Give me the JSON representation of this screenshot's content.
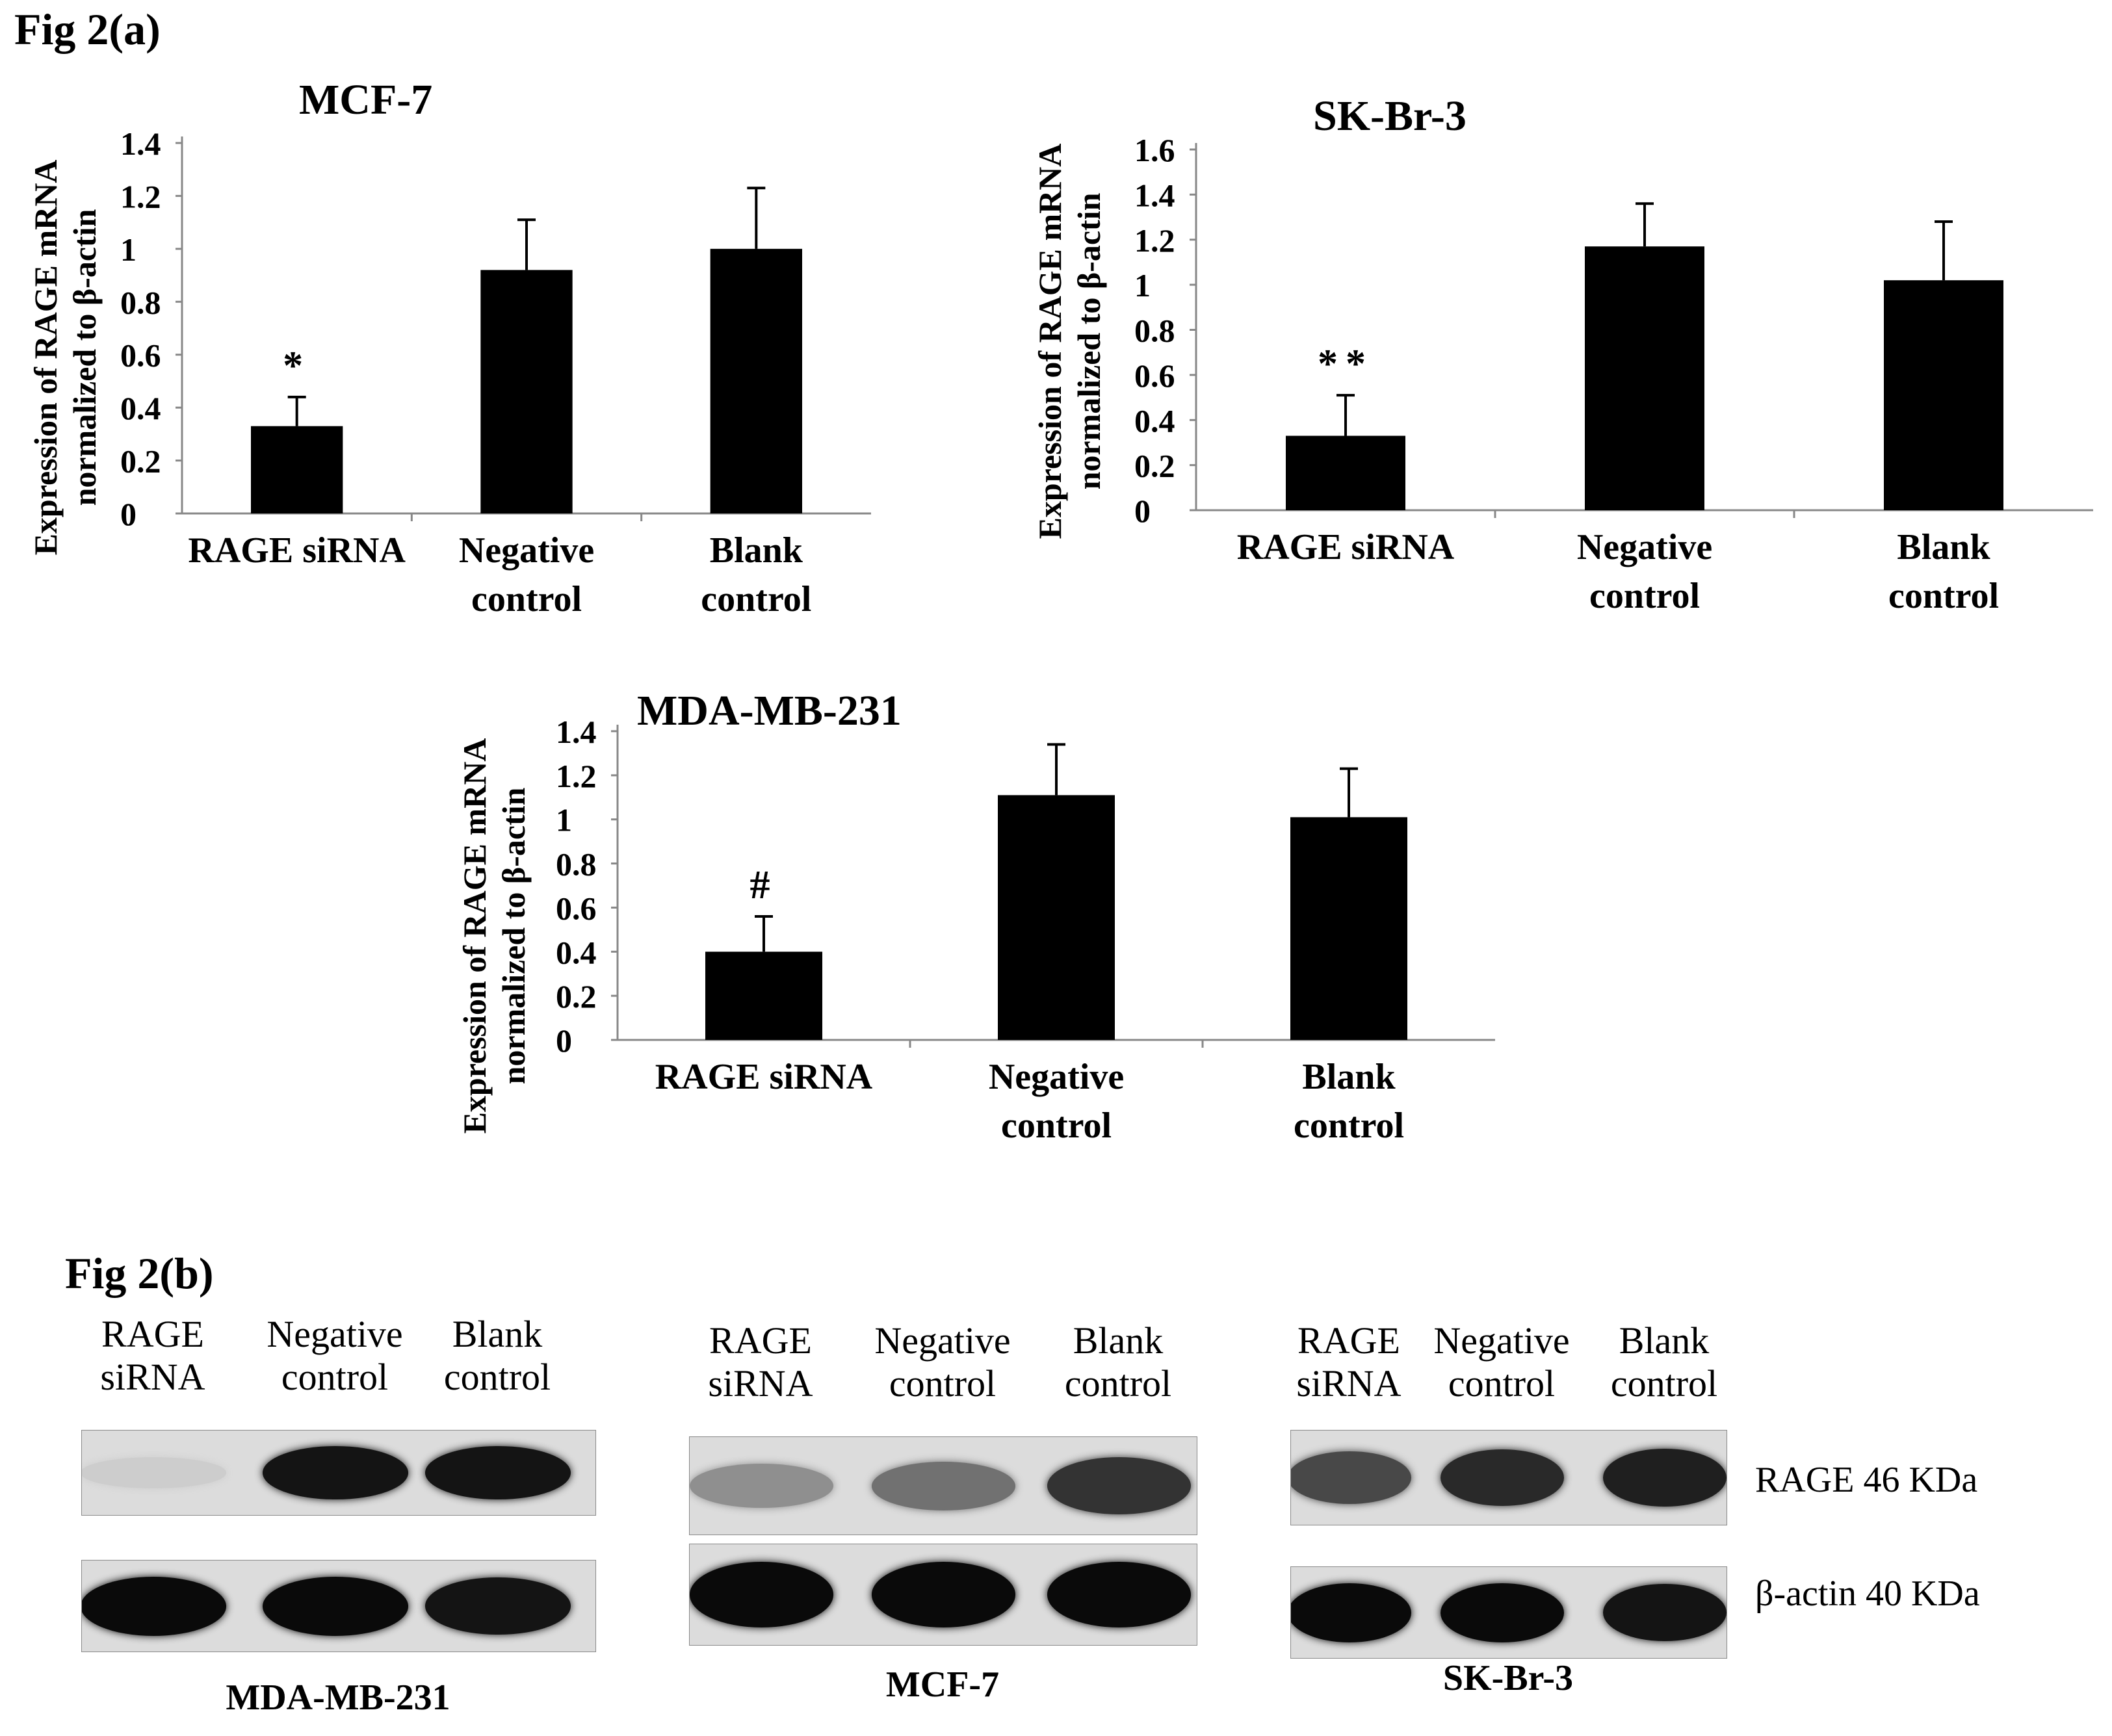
{
  "figure_a_label": "Fig 2(a)",
  "figure_b_label": "Fig 2(b)",
  "chart_data": [
    {
      "id": "mcf7",
      "type": "bar",
      "title": "MCF-7",
      "ylabel_line1": "Expression of RAGE mRNA",
      "ylabel_line2": "normalized to β-actin",
      "categories": [
        "RAGE siRNA",
        "Negative control",
        "Blank control"
      ],
      "category_lines": [
        [
          "RAGE siRNA"
        ],
        [
          "Negative",
          "control"
        ],
        [
          "Blank",
          "control"
        ]
      ],
      "values": [
        0.33,
        0.92,
        1.0
      ],
      "errors": [
        0.11,
        0.19,
        0.23
      ],
      "annotations": [
        "*",
        "",
        ""
      ],
      "ylim": [
        0,
        1.4
      ],
      "yticks": [
        "0",
        "0.2",
        "0.4",
        "0.6",
        "0.8",
        "1",
        "1.2",
        "1.4"
      ],
      "bar_color": "#000000",
      "grid": false,
      "legend": "none"
    },
    {
      "id": "skbr3",
      "type": "bar",
      "title": "SK-Br-3",
      "ylabel_line1": "Expression of RAGE mRNA",
      "ylabel_line2": "normalized to β-actin",
      "categories": [
        "RAGE siRNA",
        "Negative control",
        "Blank control"
      ],
      "category_lines": [
        [
          "RAGE siRNA"
        ],
        [
          "Negative",
          "control"
        ],
        [
          "Blank",
          "control"
        ]
      ],
      "values": [
        0.33,
        1.17,
        1.02
      ],
      "errors": [
        0.18,
        0.19,
        0.26
      ],
      "annotations": [
        "**",
        "",
        ""
      ],
      "ylim": [
        0,
        1.6
      ],
      "yticks": [
        "0",
        "0.2",
        "0.4",
        "0.6",
        "0.8",
        "1",
        "1.2",
        "1.4",
        "1.6"
      ],
      "bar_color": "#000000",
      "grid": false,
      "legend": "none"
    },
    {
      "id": "mdamb231",
      "type": "bar",
      "title": "MDA-MB-231",
      "ylabel_line1": "Expression of RAGE mRNA",
      "ylabel_line2": "normalized to β-actin",
      "categories": [
        "RAGE siRNA",
        "Negative control",
        "Blank control"
      ],
      "category_lines": [
        [
          "RAGE siRNA"
        ],
        [
          "Negative",
          "control"
        ],
        [
          "Blank",
          "control"
        ]
      ],
      "values": [
        0.4,
        1.11,
        1.01
      ],
      "errors": [
        0.16,
        0.23,
        0.22
      ],
      "annotations": [
        "#",
        "",
        ""
      ],
      "ylim": [
        0,
        1.4
      ],
      "yticks": [
        "0",
        "0.2",
        "0.4",
        "0.6",
        "0.8",
        "1",
        "1.2",
        "1.4"
      ],
      "bar_color": "#000000",
      "grid": false,
      "legend": "none"
    }
  ],
  "blots": [
    {
      "cell_line": "MDA-MB-231",
      "lanes": [
        {
          "line1": "RAGE",
          "line2": "siRNA"
        },
        {
          "line1": "Negative",
          "line2": "control"
        },
        {
          "line1": "Blank",
          "line2": "control"
        }
      ],
      "rage_band_intensity": [
        0.05,
        0.95,
        0.95
      ],
      "actin_band_intensity": [
        1.0,
        1.0,
        0.95
      ]
    },
    {
      "cell_line": "MCF-7",
      "lanes": [
        {
          "line1": "RAGE",
          "line2": "siRNA"
        },
        {
          "line1": "Negative",
          "line2": "control"
        },
        {
          "line1": "Blank",
          "line2": "control"
        }
      ],
      "rage_band_intensity": [
        0.35,
        0.5,
        0.8
      ],
      "actin_band_intensity": [
        1.0,
        1.0,
        1.0
      ]
    },
    {
      "cell_line": "SK-Br-3",
      "lanes": [
        {
          "line1": "RAGE",
          "line2": "siRNA"
        },
        {
          "line1": "Negative",
          "line2": "control"
        },
        {
          "line1": "Blank",
          "line2": "control"
        }
      ],
      "rage_band_intensity": [
        0.7,
        0.85,
        0.9
      ],
      "actin_band_intensity": [
        1.0,
        1.0,
        0.95
      ]
    }
  ],
  "marker_labels": {
    "rage": "RAGE 46 KDa",
    "actin": "β-actin 40 KDa"
  }
}
